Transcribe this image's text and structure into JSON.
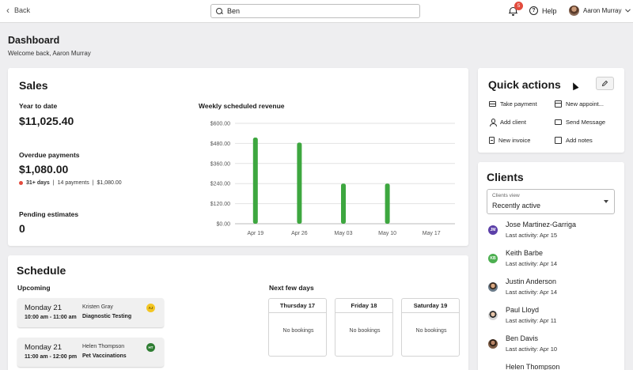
{
  "topbar": {
    "back_label": "Back",
    "search_value": "Ben",
    "notification_count": "5",
    "help_label": "Help",
    "user_name": "Aaron Murray"
  },
  "dashboard": {
    "title": "Dashboard",
    "welcome": "Welcome back, Aaron Murray"
  },
  "sales": {
    "title": "Sales",
    "ytd_label": "Year to date",
    "ytd_value": "$11,025.40",
    "overdue_label": "Overdue payments",
    "overdue_value": "$1,080.00",
    "overdue_days": "31+ days",
    "overdue_count": "14 payments",
    "overdue_amount": "$1,080.00",
    "separator": "|",
    "pending_label": "Pending estimates",
    "pending_value": "0"
  },
  "chart_data": {
    "type": "bar",
    "title": "Weekly scheduled revenue",
    "categories": [
      "Apr 19",
      "Apr 26",
      "May 03",
      "May 10",
      "May 17"
    ],
    "values": [
      515,
      485,
      240,
      240,
      0
    ],
    "yticks": [
      "$0.00",
      "$120.00",
      "$240.00",
      "$360.00",
      "$480.00",
      "$600.00"
    ],
    "ylim": [
      0,
      600
    ],
    "bar_color": "#3da73f",
    "grid": true
  },
  "quick_actions": {
    "title": "Quick actions",
    "items": [
      {
        "label": "Take payment",
        "icon": "card-icon"
      },
      {
        "label": "New appoint...",
        "icon": "calendar-icon"
      },
      {
        "label": "Add client",
        "icon": "person-icon"
      },
      {
        "label": "Send Message",
        "icon": "message-icon"
      },
      {
        "label": "New invoice",
        "icon": "invoice-icon"
      },
      {
        "label": "Add notes",
        "icon": "notes-icon"
      }
    ]
  },
  "clients": {
    "title": "Clients",
    "view_label": "Clients view",
    "view_value": "Recently active",
    "list": [
      {
        "name": "Jose Martinez-Garriga",
        "activity": "Last activity: Apr 15",
        "initials": "JM",
        "color": "#5b3fa8"
      },
      {
        "name": "Keith Barbe",
        "activity": "Last activity: Apr 14",
        "initials": "KB",
        "color": "#4caf50"
      },
      {
        "name": "Justin Anderson",
        "activity": "Last activity: Apr 14",
        "initials": "",
        "color": ""
      },
      {
        "name": "Paul Lloyd",
        "activity": "Last activity: Apr 11",
        "initials": "",
        "color": ""
      },
      {
        "name": "Ben Davis",
        "activity": "Last activity: Apr 10",
        "initials": "",
        "color": ""
      },
      {
        "name": "Helen Thompson",
        "activity": "",
        "initials": "",
        "color": ""
      }
    ]
  },
  "schedule": {
    "title": "Schedule",
    "upcoming_label": "Upcoming",
    "appointments": [
      {
        "day": "Monday 21",
        "time": "10:00 am - 11:00 am",
        "client": "Kristen Gray",
        "service": "Diagnostic Testing",
        "initials": "AJ",
        "badge_color": "#f3c623",
        "badge_text_color": "#6b5200"
      },
      {
        "day": "Monday 21",
        "time": "11:00 am - 12:00 pm",
        "client": "Helen Thompson",
        "service": "Pet Vaccinations",
        "initials": "HT",
        "badge_color": "#2e7d32",
        "badge_text_color": "#ffffff"
      }
    ],
    "next_days_label": "Next few days",
    "days": [
      {
        "name": "Thursday 17",
        "status": "No bookings"
      },
      {
        "name": "Friday 18",
        "status": "No bookings"
      },
      {
        "name": "Saturday 19",
        "status": "No bookings"
      }
    ]
  }
}
